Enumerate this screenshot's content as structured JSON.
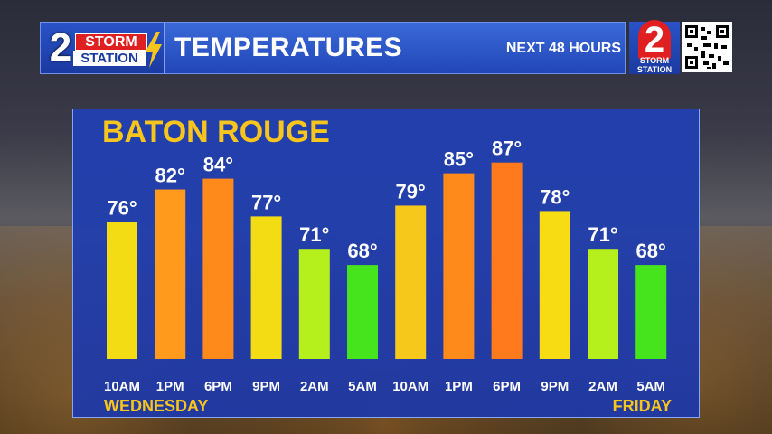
{
  "header": {
    "logo_storm": "STORM",
    "logo_station": "STATION",
    "logo_number": "2",
    "title": "TEMPERATURES",
    "subtitle": "NEXT 48 HOURS"
  },
  "corner_logo": {
    "number": "2",
    "text_line1": "STORM",
    "text_line2": "STATION"
  },
  "chart_data": {
    "type": "bar",
    "title": "BATON ROUGE",
    "xlabel": "",
    "ylabel": "",
    "categories": [
      "10AM",
      "1PM",
      "6PM",
      "9PM",
      "2AM",
      "5AM",
      "10AM",
      "1PM",
      "6PM",
      "9PM",
      "2AM",
      "5AM"
    ],
    "values": [
      76,
      82,
      84,
      77,
      71,
      68,
      79,
      85,
      87,
      78,
      71,
      68
    ],
    "value_labels": [
      "76°",
      "82°",
      "84°",
      "77°",
      "71°",
      "68°",
      "79°",
      "85°",
      "87°",
      "78°",
      "71°",
      "68°"
    ],
    "colors": [
      "#f4dc14",
      "#ff9a1c",
      "#ff8a1c",
      "#f4dc14",
      "#b6f01c",
      "#46e41c",
      "#f7c81c",
      "#ff8a1c",
      "#ff7a1c",
      "#f7dc14",
      "#b6f01c",
      "#46e41c"
    ],
    "day_labels": {
      "start": "WEDNESDAY",
      "end": "FRIDAY"
    }
  },
  "colors": {
    "panel": "#2545b8",
    "accent": "#f7c51c",
    "header": "#2a50c8"
  }
}
